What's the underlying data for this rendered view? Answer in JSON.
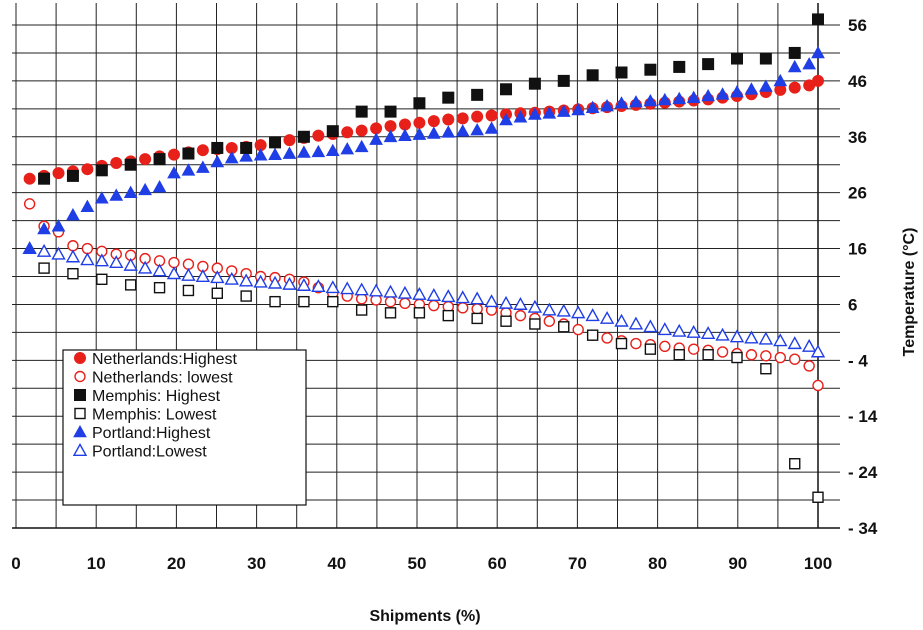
{
  "chart_data": {
    "type": "scatter",
    "xlabel": "Shipments (%)",
    "ylabel": "Temperature (°C)",
    "xlim": [
      0,
      100
    ],
    "ylim": [
      -34,
      56
    ],
    "x_ticks": [
      0,
      10,
      20,
      30,
      40,
      50,
      60,
      70,
      80,
      90,
      100
    ],
    "y_ticks": [
      56,
      46,
      36,
      26,
      16,
      6,
      -4,
      -14,
      -24,
      -34
    ],
    "y_tick_labels": [
      "56",
      "46",
      "36",
      "26",
      "16",
      "6",
      "- 4",
      "- 14",
      "- 24",
      "- 34"
    ],
    "grid": true,
    "legend": "bottom-left",
    "series": [
      {
        "name": "Netherlands:Highest",
        "marker": "circle-filled",
        "color": "#e8201a",
        "x": [
          1.7,
          3.5,
          5.3,
          7.1,
          8.9,
          10.7,
          12.5,
          14.3,
          16.1,
          17.9,
          19.7,
          21.5,
          23.3,
          25.1,
          26.9,
          28.7,
          30.5,
          32.3,
          34.1,
          35.9,
          37.7,
          39.5,
          41.3,
          43.1,
          44.9,
          46.7,
          48.5,
          50.3,
          52.1,
          53.9,
          55.7,
          57.5,
          59.3,
          61.1,
          62.9,
          64.7,
          66.5,
          68.3,
          70.1,
          71.9,
          73.7,
          75.5,
          77.3,
          79.1,
          80.9,
          82.7,
          84.5,
          86.3,
          88.1,
          89.9,
          91.7,
          93.5,
          95.3,
          97.1,
          98.9,
          100
        ],
        "y": [
          28.5,
          29,
          29.5,
          29.8,
          30.2,
          30.8,
          31.3,
          31.6,
          32,
          32.5,
          32.8,
          33.2,
          33.6,
          33.8,
          34,
          34.2,
          34.5,
          35,
          35.4,
          35.8,
          36.2,
          36.5,
          36.8,
          37.1,
          37.5,
          37.9,
          38.2,
          38.5,
          38.8,
          39.1,
          39.3,
          39.6,
          39.8,
          40,
          40.2,
          40.3,
          40.5,
          40.7,
          40.9,
          41.1,
          41.3,
          41.5,
          41.7,
          41.9,
          42.1,
          42.3,
          42.5,
          42.7,
          43,
          43.3,
          43.6,
          44,
          44.4,
          44.8,
          45.2,
          46
        ]
      },
      {
        "name": "Netherlands: lowest",
        "marker": "circle-open",
        "color": "#e8201a",
        "x": [
          1.7,
          3.5,
          5.3,
          7.1,
          8.9,
          10.7,
          12.5,
          14.3,
          16.1,
          17.9,
          19.7,
          21.5,
          23.3,
          25.1,
          26.9,
          28.7,
          30.5,
          32.3,
          34.1,
          35.9,
          37.7,
          39.5,
          41.3,
          43.1,
          44.9,
          46.7,
          48.5,
          50.3,
          52.1,
          53.9,
          55.7,
          57.5,
          59.3,
          61.1,
          62.9,
          64.7,
          66.5,
          68.3,
          70.1,
          71.9,
          73.7,
          75.5,
          77.3,
          79.1,
          80.9,
          82.7,
          84.5,
          86.3,
          88.1,
          89.9,
          91.7,
          93.5,
          95.3,
          97.1,
          98.9,
          100
        ],
        "y": [
          24,
          20,
          19,
          16.5,
          16,
          15.5,
          15,
          14.8,
          14.2,
          13.8,
          13.5,
          13.2,
          12.8,
          12.5,
          12,
          11.5,
          11,
          10.8,
          10.5,
          10,
          9,
          8,
          7.5,
          7,
          6.8,
          6.5,
          6.2,
          6,
          5.8,
          5.6,
          5.4,
          5.2,
          5,
          4.5,
          4,
          3.5,
          3,
          2.5,
          1.5,
          0.5,
          0,
          -0.5,
          -1,
          -1.2,
          -1.5,
          -1.8,
          -2,
          -2.2,
          -2.5,
          -2.8,
          -3,
          -3.2,
          -3.5,
          -3.8,
          -5,
          -8.5
        ]
      },
      {
        "name": "Memphis: Highest",
        "marker": "square-filled",
        "color": "#111111",
        "x": [
          3.5,
          7.1,
          10.7,
          14.3,
          17.9,
          21.5,
          25.1,
          28.7,
          32.3,
          35.9,
          39.5,
          43.1,
          46.7,
          50.3,
          53.9,
          57.5,
          61.1,
          64.7,
          68.3,
          71.9,
          75.5,
          79.1,
          82.7,
          86.3,
          89.9,
          93.5,
          97.1,
          100
        ],
        "y": [
          28.5,
          29,
          30,
          31,
          32,
          33,
          34,
          34,
          35,
          36,
          37,
          40.5,
          40.5,
          42,
          43,
          43.5,
          44.5,
          45.5,
          46,
          47,
          47.5,
          48,
          48.5,
          49,
          50,
          50,
          51,
          57
        ]
      },
      {
        "name": "Memphis: Lowest",
        "marker": "square-open",
        "color": "#111111",
        "x": [
          3.5,
          7.1,
          10.7,
          14.3,
          17.9,
          21.5,
          25.1,
          28.7,
          32.3,
          35.9,
          39.5,
          43.1,
          46.7,
          50.3,
          53.9,
          57.5,
          61.1,
          64.7,
          68.3,
          71.9,
          75.5,
          79.1,
          82.7,
          86.3,
          89.9,
          93.5,
          97.1,
          100
        ],
        "y": [
          12.5,
          11.5,
          10.5,
          9.5,
          9,
          8.5,
          8,
          7.5,
          6.5,
          6.5,
          6.5,
          5,
          4.5,
          4.5,
          4,
          3.5,
          3,
          2.5,
          2,
          0.5,
          -1,
          -2,
          -3,
          -3,
          -3.5,
          -5.5,
          -22.5,
          -28.5
        ]
      },
      {
        "name": "Portland:Highest",
        "marker": "triangle-filled",
        "color": "#1f3ee6",
        "x": [
          1.7,
          3.5,
          5.3,
          7.1,
          8.9,
          10.7,
          12.5,
          14.3,
          16.1,
          17.9,
          19.7,
          21.5,
          23.3,
          25.1,
          26.9,
          28.7,
          30.5,
          32.3,
          34.1,
          35.9,
          37.7,
          39.5,
          41.3,
          43.1,
          44.9,
          46.7,
          48.5,
          50.3,
          52.1,
          53.9,
          55.7,
          57.5,
          59.3,
          61.1,
          62.9,
          64.7,
          66.5,
          68.3,
          70.1,
          71.9,
          73.7,
          75.5,
          77.3,
          79.1,
          80.9,
          82.7,
          84.5,
          86.3,
          88.1,
          89.9,
          91.7,
          93.5,
          95.3,
          97.1,
          98.9,
          100
        ],
        "y": [
          16,
          19.5,
          20,
          22,
          23.5,
          25,
          25.5,
          26,
          26.5,
          27,
          29.5,
          30,
          30.5,
          31.5,
          32.2,
          32.5,
          32.7,
          32.8,
          33,
          33.2,
          33.3,
          33.5,
          33.8,
          34.2,
          35.5,
          36,
          36.2,
          36.4,
          36.6,
          36.8,
          37,
          37.2,
          37.5,
          39,
          39.5,
          40,
          40.2,
          40.5,
          40.8,
          41.2,
          41.5,
          42,
          42.2,
          42.4,
          42.6,
          42.8,
          43,
          43.3,
          43.6,
          44,
          44.5,
          45,
          46,
          48.5,
          49,
          51
        ]
      },
      {
        "name": "Portland:Lowest",
        "marker": "triangle-open",
        "color": "#1f3ee6",
        "x": [
          1.7,
          3.5,
          5.3,
          7.1,
          8.9,
          10.7,
          12.5,
          14.3,
          16.1,
          17.9,
          19.7,
          21.5,
          23.3,
          25.1,
          26.9,
          28.7,
          30.5,
          32.3,
          34.1,
          35.9,
          37.7,
          39.5,
          41.3,
          43.1,
          44.9,
          46.7,
          48.5,
          50.3,
          52.1,
          53.9,
          55.7,
          57.5,
          59.3,
          61.1,
          62.9,
          64.7,
          66.5,
          68.3,
          70.1,
          71.9,
          73.7,
          75.5,
          77.3,
          79.1,
          80.9,
          82.7,
          84.5,
          86.3,
          88.1,
          89.9,
          91.7,
          93.5,
          95.3,
          97.1,
          98.9,
          100
        ],
        "y": [
          16,
          15.5,
          15,
          14.5,
          14,
          13.8,
          13.5,
          13,
          12.5,
          12,
          11.5,
          11.2,
          11,
          10.8,
          10.5,
          10.2,
          10,
          9.8,
          9.6,
          9.4,
          9.2,
          9,
          8.8,
          8.6,
          8.4,
          8.2,
          8,
          7.8,
          7.6,
          7.4,
          7.2,
          7,
          6.5,
          6.2,
          6,
          5.5,
          5,
          4.8,
          4.5,
          4,
          3.5,
          3,
          2.5,
          2,
          1.5,
          1.2,
          1,
          0.8,
          0.5,
          0.2,
          0,
          -0.2,
          -0.5,
          -1,
          -1.5,
          -2.5
        ]
      }
    ]
  }
}
